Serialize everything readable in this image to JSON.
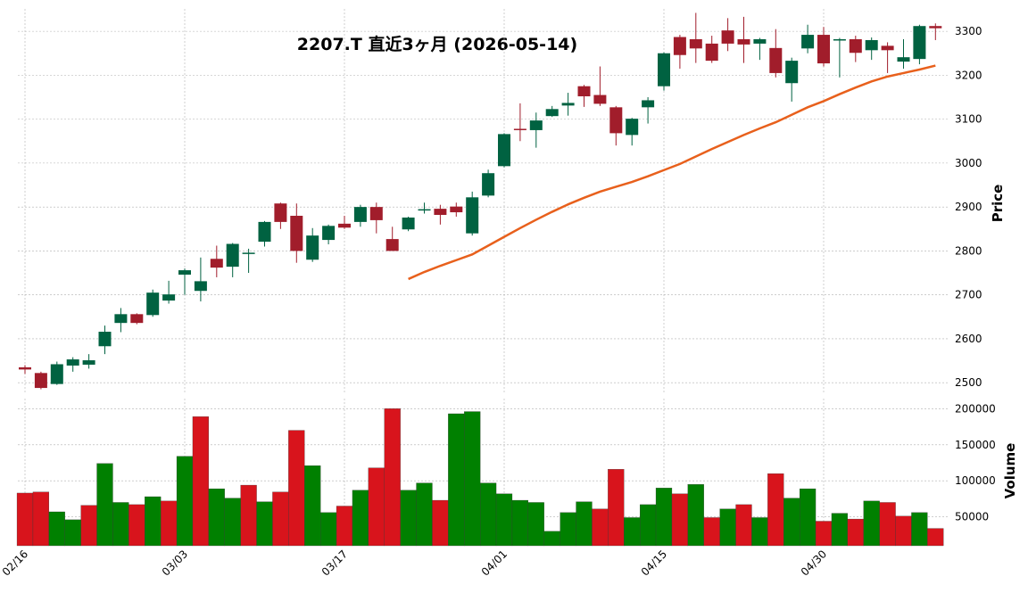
{
  "chart_data": {
    "type": "candlestick",
    "title": "2207.T  直近3ヶ月 (2026-05-14)",
    "categories": [
      "02/16",
      null,
      null,
      null,
      null,
      null,
      null,
      null,
      null,
      null,
      "03/03",
      null,
      null,
      null,
      null,
      null,
      null,
      null,
      null,
      null,
      "03/17",
      null,
      null,
      null,
      null,
      null,
      null,
      null,
      null,
      null,
      "04/01",
      null,
      null,
      null,
      null,
      null,
      null,
      null,
      null,
      null,
      "04/15",
      null,
      null,
      null,
      null,
      null,
      null,
      null,
      null,
      null,
      "04/30",
      null,
      null,
      null,
      null,
      null,
      null,
      null
    ],
    "open": [
      2535,
      2522,
      2497,
      2539,
      2541,
      2583,
      2636,
      2656,
      2654,
      2687,
      2746,
      2709,
      2782,
      2764,
      2794,
      2821,
      2908,
      2880,
      2780,
      2825,
      2862,
      2866,
      2900,
      2827,
      2849,
      2892,
      2896,
      2901,
      2840,
      2926,
      2993,
      3078,
      3075,
      3107,
      3131,
      3175,
      3155,
      3127,
      3064,
      3127,
      3175,
      3287,
      3282,
      3272,
      3302,
      3282,
      3272,
      3262,
      3182,
      3261,
      3292,
      3279,
      3282,
      3257,
      3267,
      3231,
      3237,
      3312
    ],
    "high": [
      2540,
      2525,
      2548,
      2558,
      2565,
      2630,
      2670,
      2658,
      2712,
      2732,
      2760,
      2785,
      2812,
      2818,
      2805,
      2868,
      2910,
      2908,
      2852,
      2860,
      2880,
      2905,
      2910,
      2855,
      2878,
      2910,
      2905,
      2910,
      2935,
      2985,
      3068,
      3136,
      3115,
      3130,
      3160,
      3178,
      3220,
      3130,
      3103,
      3150,
      3252,
      3292,
      3342,
      3290,
      3330,
      3333,
      3285,
      3305,
      3240,
      3315,
      3310,
      3285,
      3290,
      3286,
      3275,
      3282,
      3315,
      3318
    ],
    "low": [
      2520,
      2485,
      2495,
      2525,
      2532,
      2565,
      2615,
      2633,
      2650,
      2680,
      2700,
      2685,
      2740,
      2740,
      2750,
      2810,
      2850,
      2773,
      2775,
      2815,
      2850,
      2855,
      2840,
      2800,
      2845,
      2885,
      2860,
      2878,
      2835,
      2922,
      2990,
      3050,
      3035,
      3105,
      3108,
      3128,
      3130,
      3040,
      3040,
      3090,
      3165,
      3215,
      3228,
      3228,
      3255,
      3228,
      3235,
      3195,
      3140,
      3250,
      3220,
      3195,
      3230,
      3235,
      3205,
      3215,
      3225,
      3280
    ],
    "close": [
      2530,
      2488,
      2542,
      2553,
      2551,
      2616,
      2656,
      2636,
      2705,
      2701,
      2756,
      2731,
      2762,
      2816,
      2796,
      2866,
      2866,
      2800,
      2835,
      2857,
      2853,
      2900,
      2870,
      2800,
      2876,
      2895,
      2882,
      2888,
      2922,
      2977,
      3066,
      3076,
      3097,
      3123,
      3137,
      3152,
      3135,
      3068,
      3101,
      3143,
      3250,
      3246,
      3261,
      3233,
      3272,
      3270,
      3282,
      3205,
      3233,
      3292,
      3227,
      3282,
      3251,
      3280,
      3257,
      3241,
      3312,
      3307
    ],
    "up_color": "#006241",
    "down_color": "#a11d2b",
    "ylim": [
      2478,
      3351
    ],
    "yticks": [
      2500,
      2600,
      2700,
      2800,
      2900,
      3000,
      3100,
      3200,
      3300
    ],
    "ylabel": "Price",
    "grid": true,
    "ma": {
      "color": "#e8601c",
      "values": [
        null,
        null,
        null,
        null,
        null,
        null,
        null,
        null,
        null,
        null,
        null,
        null,
        null,
        null,
        null,
        null,
        null,
        null,
        null,
        null,
        null,
        null,
        null,
        null,
        2736,
        2752,
        2766,
        2779,
        2792,
        2812,
        2832,
        2852,
        2871,
        2889,
        2906,
        2921,
        2935,
        2946,
        2957,
        2970,
        2984,
        2998,
        3015,
        3032,
        3048,
        3064,
        3079,
        3093,
        3110,
        3127,
        3141,
        3157,
        3172,
        3186,
        3197,
        3205,
        3213,
        3222
      ]
    },
    "volume": {
      "ylabel": "Volume",
      "ylim": [
        10000,
        214000
      ],
      "yticks": [
        50000,
        100000,
        150000,
        200000
      ],
      "up_color": "#008000",
      "down_color": "#d8141c",
      "values": [
        83000,
        84500,
        57000,
        46000,
        66000,
        124000,
        70000,
        67000,
        78000,
        72000,
        134000,
        189000,
        89000,
        76000,
        94000,
        71000,
        84500,
        170000,
        121000,
        56000,
        65000,
        87000,
        118000,
        200000,
        87000,
        97000,
        73000,
        193000,
        196000,
        97000,
        82000,
        73000,
        70000,
        30000,
        56000,
        71000,
        61000,
        116000,
        49000,
        67000,
        90000,
        82000,
        95000,
        49000,
        61000,
        67000,
        49000,
        110000,
        76000,
        89000,
        44000,
        55000,
        47000,
        72000,
        70000,
        51000,
        56000,
        34000
      ],
      "directions": [
        "down",
        "down",
        "up",
        "up",
        "down",
        "up",
        "up",
        "down",
        "up",
        "down",
        "up",
        "down",
        "up",
        "up",
        "down",
        "up",
        "down",
        "down",
        "up",
        "up",
        "down",
        "up",
        "down",
        "down",
        "up",
        "up",
        "down",
        "up",
        "up",
        "up",
        "up",
        "up",
        "up",
        "up",
        "up",
        "up",
        "down",
        "down",
        "up",
        "up",
        "up",
        "down",
        "up",
        "down",
        "up",
        "down",
        "up",
        "down",
        "up",
        "up",
        "down",
        "up",
        "down",
        "up",
        "down",
        "down",
        "up",
        "down"
      ]
    }
  }
}
